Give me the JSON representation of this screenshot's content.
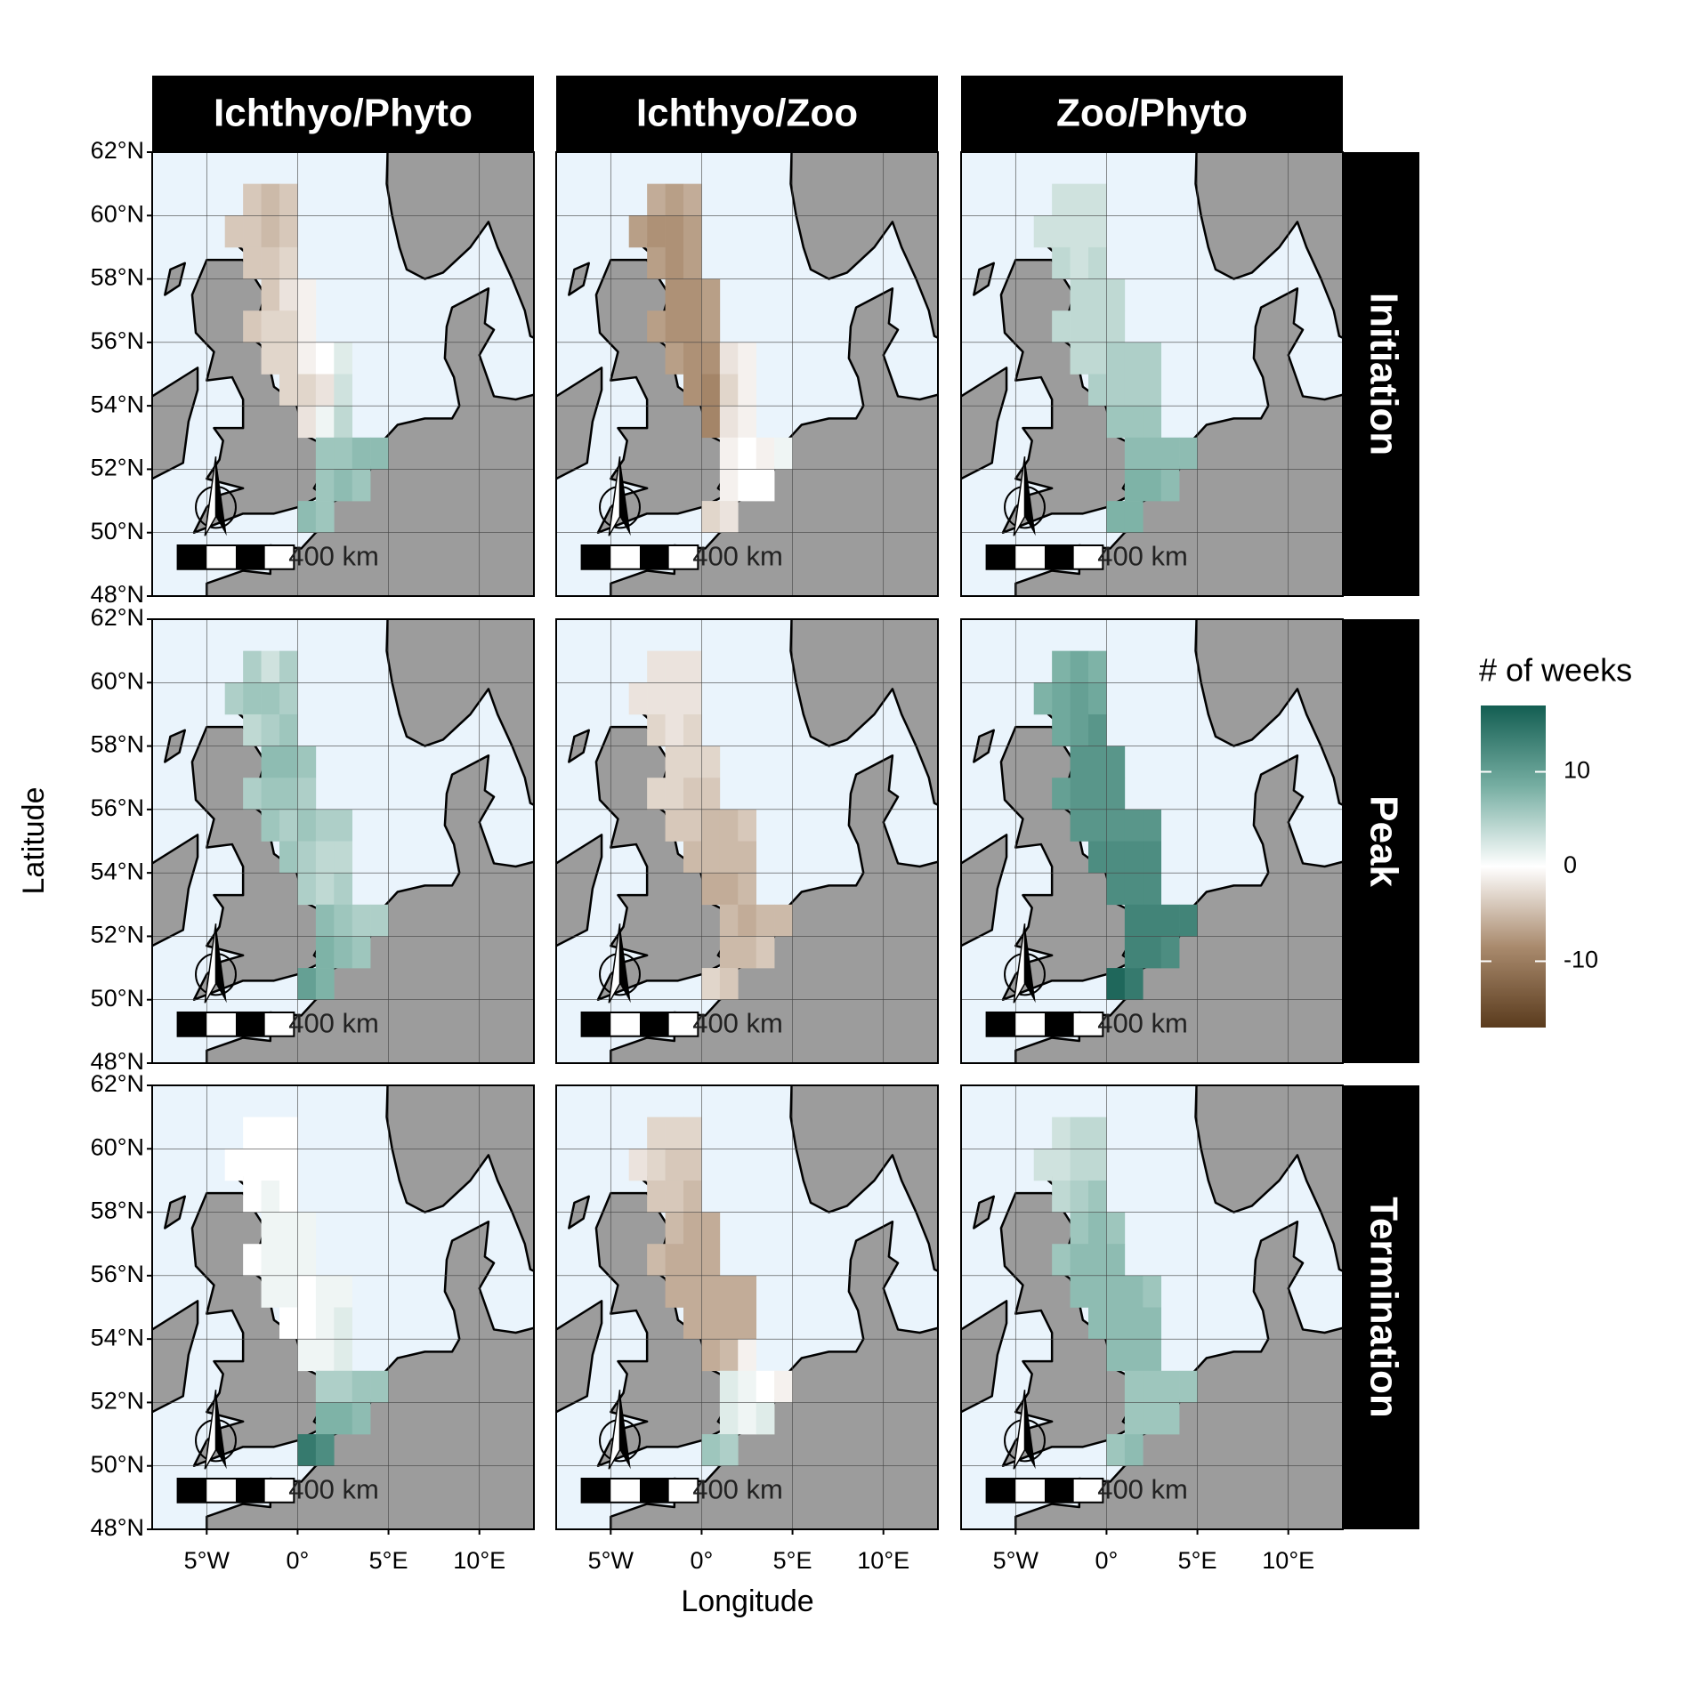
{
  "chart_data": {
    "type": "heatmap-map",
    "x_label": "Longitude",
    "y_label": "Latitude",
    "xlim": [
      -8,
      13
    ],
    "ylim": [
      48,
      62
    ],
    "xticks": [
      {
        "value": -5,
        "label": "5°W"
      },
      {
        "value": 0,
        "label": "0°"
      },
      {
        "value": 5,
        "label": "5°E"
      },
      {
        "value": 10,
        "label": "10°E"
      }
    ],
    "yticks": [
      {
        "value": 48,
        "label": "48°N"
      },
      {
        "value": 50,
        "label": "50°N"
      },
      {
        "value": 52,
        "label": "52°N"
      },
      {
        "value": 54,
        "label": "54°N"
      },
      {
        "value": 56,
        "label": "56°N"
      },
      {
        "value": 58,
        "label": "58°N"
      },
      {
        "value": 60,
        "label": "60°N"
      },
      {
        "value": 62,
        "label": "62°N"
      }
    ],
    "columns": [
      "Ichthyo/Phyto",
      "Ichthyo/Zoo",
      "Zoo/Phyto"
    ],
    "rows": [
      "Initiation",
      "Peak",
      "Termination"
    ],
    "scale_bar_label": "400 km",
    "cells": {
      "lon": [
        -3,
        -2,
        -1,
        -4,
        -3,
        -2,
        -1,
        -3,
        -2,
        -1,
        -2,
        -1,
        0,
        -3,
        -2,
        -1,
        0,
        -2,
        -1,
        0,
        1,
        2,
        -1,
        0,
        1,
        2,
        0,
        1,
        2,
        1,
        2,
        3,
        4,
        1,
        2,
        3,
        0,
        1
      ],
      "lat": [
        60,
        60,
        60,
        59,
        59,
        59,
        59,
        58,
        58,
        58,
        57,
        57,
        57,
        56,
        56,
        56,
        56,
        55,
        55,
        55,
        55,
        55,
        54,
        54,
        54,
        54,
        53,
        53,
        53,
        52,
        52,
        52,
        52,
        51,
        51,
        51,
        50,
        50
      ]
    },
    "panels": [
      [
        [
          -4,
          -5,
          -4,
          -4,
          -4,
          -5,
          -4,
          -4,
          -4,
          -3,
          -4,
          -2,
          -1,
          -4,
          -3,
          -3,
          -1,
          -3,
          -3,
          -1,
          0,
          2,
          -3,
          -3,
          -2,
          3,
          -2,
          1,
          4,
          6,
          6,
          7,
          7,
          6,
          7,
          6,
          7,
          6
        ],
        [
          -6,
          -7,
          -6,
          -7,
          -8,
          -8,
          -7,
          -7,
          -8,
          -7,
          -8,
          -8,
          -7,
          -7,
          -8,
          -8,
          -7,
          -7,
          -8,
          -8,
          -2,
          -1,
          -8,
          -9,
          -3,
          -1,
          -9,
          -2,
          -1,
          -1,
          0,
          -1,
          1,
          -1,
          0,
          0,
          -3,
          -2
        ],
        [
          3,
          3,
          3,
          3,
          3,
          3,
          3,
          4,
          3,
          4,
          4,
          4,
          4,
          4,
          4,
          4,
          4,
          4,
          4,
          5,
          5,
          5,
          5,
          5,
          5,
          5,
          6,
          6,
          6,
          7,
          7,
          7,
          7,
          8,
          8,
          7,
          8,
          8
        ]
      ],
      [
        [
          5,
          3,
          5,
          5,
          6,
          6,
          5,
          4,
          5,
          6,
          7,
          7,
          6,
          5,
          6,
          6,
          5,
          6,
          5,
          6,
          5,
          5,
          6,
          5,
          4,
          4,
          5,
          4,
          5,
          7,
          6,
          5,
          5,
          8,
          7,
          6,
          10,
          8
        ],
        [
          -2,
          -2,
          -2,
          -2,
          -2,
          -2,
          -2,
          -3,
          -2,
          -3,
          -3,
          -3,
          -3,
          -3,
          -3,
          -4,
          -4,
          -4,
          -4,
          -5,
          -5,
          -4,
          -5,
          -5,
          -5,
          -5,
          -6,
          -6,
          -5,
          -5,
          -6,
          -5,
          -5,
          -5,
          -5,
          -4,
          -3,
          -4
        ],
        [
          8,
          9,
          8,
          8,
          9,
          10,
          9,
          9,
          10,
          11,
          11,
          11,
          11,
          10,
          11,
          11,
          11,
          11,
          11,
          11,
          11,
          11,
          12,
          12,
          12,
          12,
          12,
          12,
          12,
          13,
          13,
          13,
          13,
          13,
          13,
          12,
          16,
          14
        ]
      ],
      [
        [
          0,
          0,
          0,
          0,
          0,
          0,
          0,
          0,
          1,
          0,
          1,
          1,
          1,
          0,
          1,
          1,
          1,
          1,
          1,
          0,
          1,
          1,
          0,
          0,
          1,
          2,
          1,
          1,
          2,
          5,
          5,
          6,
          6,
          8,
          8,
          7,
          14,
          12
        ],
        [
          -3,
          -3,
          -3,
          -2,
          -3,
          -4,
          -4,
          -4,
          -4,
          -5,
          -5,
          -6,
          -6,
          -5,
          -6,
          -6,
          -6,
          -6,
          -6,
          -6,
          -6,
          -6,
          -6,
          -6,
          -6,
          -6,
          -6,
          -5,
          -1,
          2,
          1,
          0,
          -1,
          2,
          1,
          2,
          6,
          5
        ],
        [
          3,
          4,
          4,
          3,
          3,
          4,
          4,
          4,
          5,
          6,
          6,
          7,
          6,
          6,
          7,
          7,
          7,
          7,
          7,
          7,
          7,
          6,
          7,
          7,
          7,
          7,
          7,
          7,
          7,
          6,
          6,
          6,
          6,
          6,
          6,
          6,
          6,
          7
        ]
      ]
    ],
    "legend": {
      "title": "# of weeks",
      "lim": [
        -17,
        17
      ],
      "ticks": [
        10,
        0,
        -10
      ],
      "colors": [
        "#5a3b1d",
        "#a98a6d",
        "#ffffff",
        "#76ae a2",
        "#135e52"
      ]
    }
  }
}
